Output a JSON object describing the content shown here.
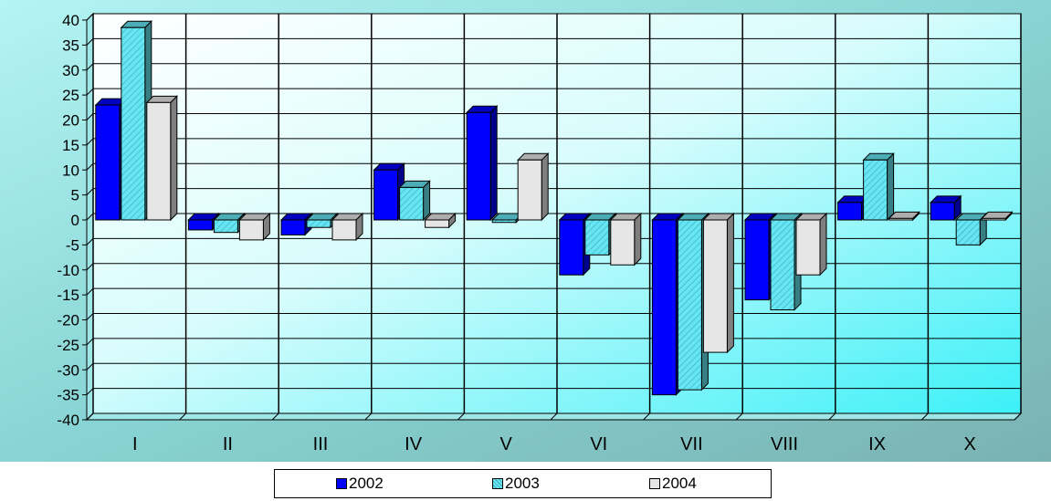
{
  "chart_data": {
    "type": "bar",
    "categories": [
      "I",
      "II",
      "III",
      "IV",
      "V",
      "VI",
      "VII",
      "VIII",
      "IX",
      "X"
    ],
    "series": [
      {
        "name": "2002",
        "color": "#0000ff",
        "values": [
          23,
          -2,
          -3,
          10,
          21.5,
          -11,
          -35,
          -16,
          3.5,
          3.5
        ]
      },
      {
        "name": "2003",
        "color": "#66e6f2",
        "values": [
          38.5,
          -2.5,
          -1.5,
          6.5,
          -0.5,
          -7,
          -34,
          -18,
          12,
          -5
        ]
      },
      {
        "name": "2004",
        "color": "#e6e6e6",
        "values": [
          23.5,
          -4,
          -4,
          -1.5,
          12,
          -9,
          -26.5,
          -11,
          0.3,
          0.3
        ]
      }
    ],
    "ylim": [
      -40,
      40
    ],
    "yticks": [
      40,
      35,
      30,
      25,
      20,
      15,
      10,
      5,
      0,
      -5,
      -10,
      -15,
      -20,
      -25,
      -30,
      -35,
      -40
    ],
    "grid": true,
    "legend_position": "bottom"
  }
}
